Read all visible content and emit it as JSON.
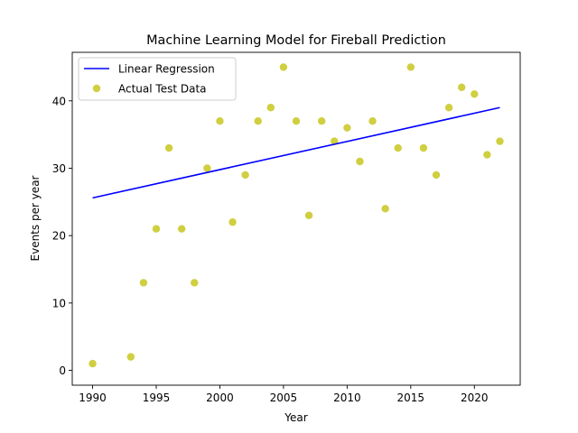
{
  "chart_data": {
    "type": "scatter",
    "title": "Machine Learning Model for Fireball Prediction",
    "xlabel": "Year",
    "ylabel": "Events per year",
    "xlim": [
      1988.4,
      2023.6
    ],
    "ylim": [
      -2.2,
      47.2
    ],
    "xticks": [
      1990,
      1995,
      2000,
      2005,
      2010,
      2015,
      2020
    ],
    "yticks": [
      0,
      10,
      20,
      30,
      40
    ],
    "grid": false,
    "legend_position": "upper-left",
    "series": [
      {
        "name": "Linear Regression",
        "kind": "line",
        "color": "#0000ff",
        "x": [
          1990,
          2022
        ],
        "y": [
          25.6,
          39.0
        ]
      },
      {
        "name": "Actual Test Data",
        "kind": "scatter",
        "color": "#bfbf00",
        "x": [
          1990,
          1993,
          1994,
          1995,
          1996,
          1997,
          1998,
          1999,
          2000,
          2001,
          2002,
          2003,
          2004,
          2005,
          2006,
          2007,
          2008,
          2009,
          2010,
          2011,
          2012,
          2013,
          2014,
          2015,
          2016,
          2017,
          2018,
          2019,
          2020,
          2021,
          2022
        ],
        "y": [
          1,
          2,
          13,
          21,
          33,
          21,
          13,
          30,
          37,
          22,
          29,
          37,
          39,
          45,
          37,
          23,
          37,
          34,
          36,
          31,
          37,
          24,
          33,
          45,
          33,
          29,
          39,
          42,
          41,
          32,
          34
        ]
      }
    ]
  }
}
